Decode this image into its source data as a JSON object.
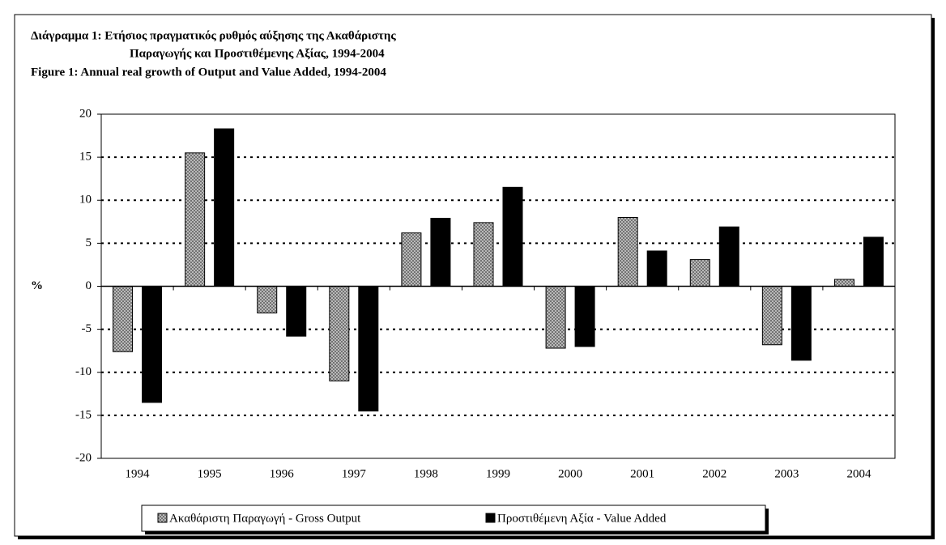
{
  "chart_data": {
    "type": "bar",
    "title": [
      "Διάγραμμα 1: Ετήσιος πραγματικός ρυθμός αύξησης της Ακαθάριστης",
      "Παραγωγής και Προστιθέμενης Αξίας, 1994-2004",
      "Figure 1: Annual real growth of Output and Value Added, 1994-2004"
    ],
    "ylabel": "%",
    "categories": [
      "1994",
      "1995",
      "1996",
      "1997",
      "1998",
      "1999",
      "2000",
      "2001",
      "2002",
      "2003",
      "2004"
    ],
    "series": [
      {
        "name": "Ακαθάριστη Παραγωγή - Gross Output",
        "color": "#c8c8c8",
        "values": [
          -7.6,
          15.5,
          -3.1,
          -11,
          6.2,
          7.4,
          -7.2,
          8.0,
          3.1,
          -6.8,
          0.8
        ]
      },
      {
        "name": "Προστιθέμενη Αξία - Value Added",
        "color": "#000000",
        "values": [
          -13.5,
          18.3,
          -5.8,
          -14.5,
          7.9,
          11.5,
          -7.0,
          4.1,
          6.9,
          -8.6,
          5.7
        ]
      }
    ],
    "ylim": [
      -20,
      20
    ],
    "yticks": [
      -20,
      -15,
      -10,
      -5,
      0,
      5,
      10,
      15,
      20
    ],
    "grid": true,
    "legend": "bottom"
  }
}
